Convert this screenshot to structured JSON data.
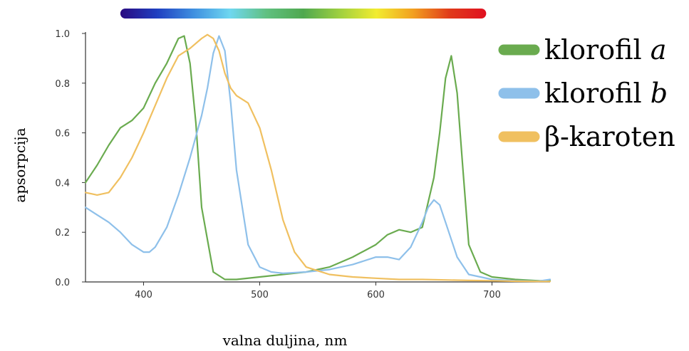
{
  "chart_data": {
    "type": "line",
    "title": "",
    "xlabel": "valna duljina, nm",
    "ylabel": "apsorpcija",
    "xlim": [
      350,
      750
    ],
    "ylim": [
      0,
      1.0
    ],
    "xticks": [
      400,
      500,
      600,
      700
    ],
    "yticks": [
      "0.0",
      "0.2",
      "0.4",
      "0.6",
      "0.8",
      "1.0"
    ],
    "grid": false,
    "legend_position": "top-right",
    "spectrum_bar": {
      "x_range": [
        380,
        695
      ],
      "colors": [
        "#2a0a80",
        "#1f3fc0",
        "#3f8fe0",
        "#6fd7f0",
        "#60c080",
        "#4fa84f",
        "#9fd040",
        "#f2ec30",
        "#f2a020",
        "#e03a1a",
        "#e01020"
      ]
    },
    "series": [
      {
        "name": "klorofil a",
        "name_parts": [
          "klorofil ",
          "a"
        ],
        "color": "#6aab4f",
        "x": [
          350,
          360,
          370,
          380,
          390,
          400,
          410,
          420,
          425,
          430,
          435,
          440,
          445,
          450,
          460,
          470,
          480,
          500,
          520,
          540,
          560,
          580,
          600,
          610,
          620,
          630,
          640,
          650,
          655,
          660,
          665,
          670,
          675,
          680,
          690,
          700,
          720,
          740,
          750
        ],
        "y": [
          0.4,
          0.47,
          0.55,
          0.62,
          0.65,
          0.7,
          0.8,
          0.88,
          0.93,
          0.98,
          0.99,
          0.88,
          0.64,
          0.3,
          0.04,
          0.01,
          0.01,
          0.02,
          0.03,
          0.04,
          0.06,
          0.1,
          0.15,
          0.19,
          0.21,
          0.2,
          0.22,
          0.42,
          0.6,
          0.82,
          0.91,
          0.76,
          0.45,
          0.15,
          0.04,
          0.02,
          0.01,
          0.005,
          0.005
        ]
      },
      {
        "name": "klorofil b",
        "name_parts": [
          "klorofil ",
          "b"
        ],
        "color": "#8ec0ea",
        "x": [
          350,
          360,
          370,
          380,
          390,
          400,
          405,
          410,
          420,
          430,
          440,
          450,
          455,
          460,
          465,
          470,
          475,
          480,
          490,
          500,
          510,
          520,
          540,
          560,
          580,
          600,
          610,
          620,
          630,
          640,
          645,
          650,
          655,
          660,
          670,
          680,
          700,
          720,
          740,
          750
        ],
        "y": [
          0.3,
          0.27,
          0.24,
          0.2,
          0.15,
          0.12,
          0.12,
          0.14,
          0.22,
          0.35,
          0.5,
          0.67,
          0.78,
          0.92,
          0.99,
          0.93,
          0.72,
          0.45,
          0.15,
          0.06,
          0.04,
          0.035,
          0.04,
          0.05,
          0.07,
          0.1,
          0.1,
          0.09,
          0.14,
          0.24,
          0.3,
          0.33,
          0.31,
          0.24,
          0.1,
          0.03,
          0.01,
          0.005,
          0.003,
          0.01
        ]
      },
      {
        "name": "β-karoten",
        "name_parts": [
          "β-karoten",
          ""
        ],
        "color": "#f0c060",
        "x": [
          350,
          360,
          370,
          380,
          390,
          400,
          410,
          420,
          430,
          440,
          450,
          455,
          460,
          465,
          470,
          475,
          480,
          490,
          500,
          510,
          520,
          530,
          540,
          560,
          580,
          600,
          620,
          640,
          660,
          680,
          700,
          720,
          740,
          750
        ],
        "y": [
          0.36,
          0.35,
          0.36,
          0.42,
          0.5,
          0.6,
          0.71,
          0.82,
          0.91,
          0.94,
          0.98,
          0.995,
          0.98,
          0.93,
          0.84,
          0.78,
          0.75,
          0.72,
          0.62,
          0.45,
          0.25,
          0.12,
          0.06,
          0.03,
          0.02,
          0.015,
          0.01,
          0.01,
          0.008,
          0.006,
          0.005,
          0.003,
          0.002,
          0.002
        ]
      }
    ]
  }
}
